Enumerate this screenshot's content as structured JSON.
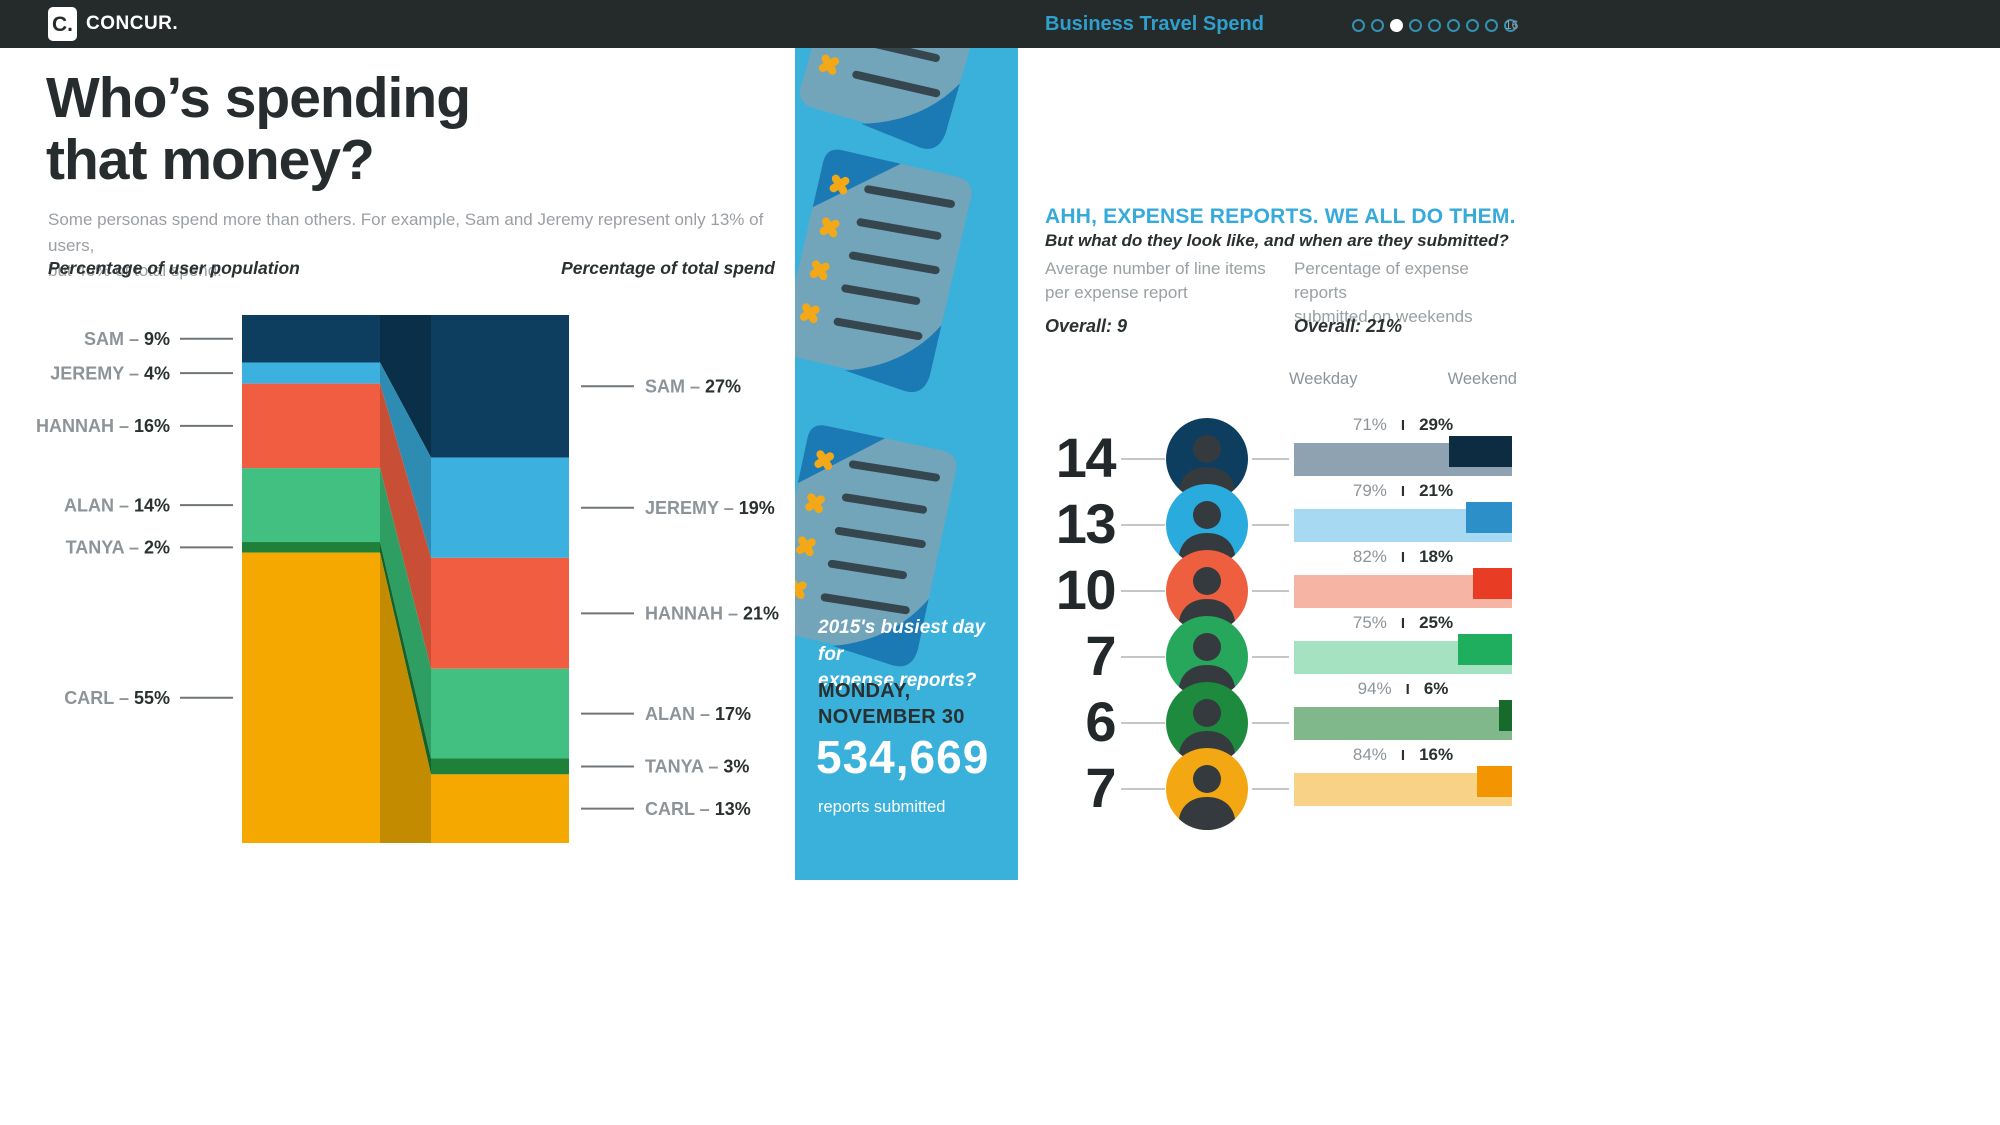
{
  "header": {
    "logo_mark": "C.",
    "logo_text": "CONCUR.",
    "slide_title": "Business Travel Spend",
    "page_number": "16",
    "dots": {
      "count": 9,
      "active_index": 2
    }
  },
  "colors": {
    "header_bg": "#252a2b",
    "accent_blue": "#35aadb",
    "column_bg": "#3ab1da",
    "text_dark": "#2b3131",
    "text_gray": "#9aa0a3"
  },
  "left": {
    "title": "Who’s spending\nthat money?",
    "intro": "Some personas spend more than others. For example, Sam and Jeremy represent only 13% of users,\nbut 46% of total spend."
  },
  "middle": {
    "question": "2015's busiest day for\nexpense reports?",
    "date": "MONDAY,\nNOVEMBER 30",
    "big_number": "534,669",
    "caption": "reports submitted"
  },
  "right_panel": {
    "heading": "AHH, EXPENSE REPORTS. WE ALL DO THEM.",
    "subheading": "But what do they look like, and when are they submitted?",
    "col1_label": "Average number of line items\nper expense report",
    "col2_label": "Percentage of expense reports\nsubmitted on weekends",
    "col1_overall": "Overall: 9",
    "col2_overall": "Overall: 21%",
    "weekday_label": "Weekday",
    "weekend_label": "Weekend",
    "divider": "I"
  },
  "chart_data": [
    {
      "id": "persona-population-vs-spend",
      "type": "slope-stacked-bar",
      "left_axis_label": "Percentage of user population",
      "right_axis_label": "Percentage of total spend",
      "units": "%",
      "personas": [
        {
          "name": "SAM",
          "population": 9,
          "spend": 27,
          "color": "#0d3e5f",
          "slope_color": "#0a3049"
        },
        {
          "name": "JEREMY",
          "population": 4,
          "spend": 19,
          "color": "#3cb1e0",
          "slope_color": "#2e8cb2"
        },
        {
          "name": "HANNAH",
          "population": 16,
          "spend": 21,
          "color": "#f05d40",
          "slope_color": "#c84e36"
        },
        {
          "name": "ALAN",
          "population": 14,
          "spend": 17,
          "color": "#41c081",
          "slope_color": "#2f9e63"
        },
        {
          "name": "TANYA",
          "population": 2,
          "spend": 3,
          "color": "#1f8039",
          "slope_color": "#15612a"
        },
        {
          "name": "CARL",
          "population": 55,
          "spend": 13,
          "color": "#f4a800",
          "slope_color": "#c28b00"
        }
      ]
    },
    {
      "id": "line-items-and-weekend-share",
      "type": "bar",
      "overall_line_items": 9,
      "overall_weekend_pct": 21,
      "rows": [
        {
          "persona": "Sam",
          "line_items": 14,
          "weekday_pct": 71,
          "weekend_pct": 29,
          "bar_light": "#8fa2b1",
          "bar_dark": "#0d2c42",
          "avatar_color": "#0d3e5f"
        },
        {
          "persona": "Jeremy",
          "line_items": 13,
          "weekday_pct": 79,
          "weekend_pct": 21,
          "bar_light": "#a7d9f2",
          "bar_dark": "#2d8fc8",
          "avatar_color": "#29abdd"
        },
        {
          "persona": "Hannah",
          "line_items": 10,
          "weekday_pct": 82,
          "weekend_pct": 18,
          "bar_light": "#f6b4a4",
          "bar_dark": "#e83d24",
          "avatar_color": "#ee5f40"
        },
        {
          "persona": "Alan",
          "line_items": 7,
          "weekday_pct": 75,
          "weekend_pct": 25,
          "bar_light": "#a5e2c2",
          "bar_dark": "#1fae5d",
          "avatar_color": "#27a75c"
        },
        {
          "persona": "Tanya",
          "line_items": 6,
          "weekday_pct": 94,
          "weekend_pct": 6,
          "bar_light": "#80b78b",
          "bar_dark": "#156a2c",
          "avatar_color": "#1e8a3e"
        },
        {
          "persona": "Carl",
          "line_items": 7,
          "weekday_pct": 84,
          "weekend_pct": 16,
          "bar_light": "#f8d286",
          "bar_dark": "#f29500",
          "avatar_color": "#f2a713"
        }
      ]
    }
  ]
}
